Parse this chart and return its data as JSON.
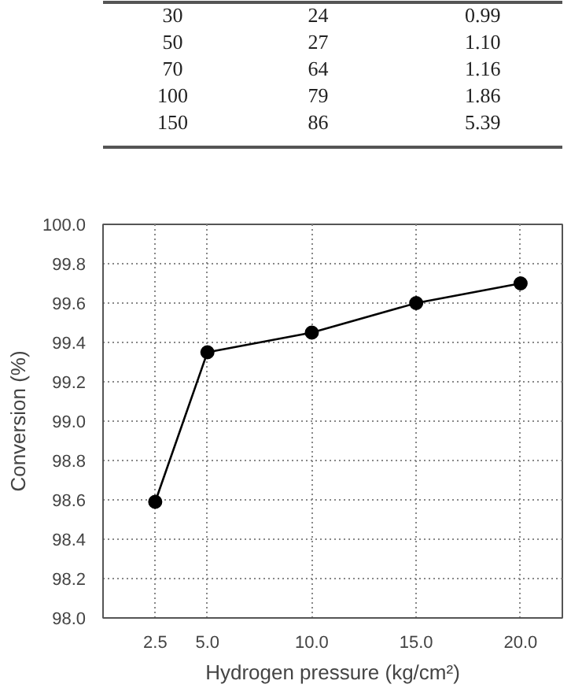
{
  "chart_data": {
    "type": "line",
    "xlabel": "Hydrogen pressure (kg/cm²)",
    "ylabel": "Conversion (%)",
    "annotations": [
      "30",
      "24",
      "0.99",
      "50",
      "27",
      "1.10",
      "70",
      "64",
      "1.16",
      "100",
      "79",
      "1.86",
      "150",
      "86",
      "5.39"
    ],
    "x": [
      2.5,
      5,
      10,
      15,
      20
    ],
    "series": [
      {
        "color": "#000000",
        "values": [
          98.59,
          99.35,
          99.45,
          99.6,
          99.7
        ]
      }
    ],
    "xlim": [
      0,
      22
    ],
    "ylim": [
      98.0,
      100.0
    ],
    "xticks": [
      {
        "value": 2.5,
        "label": "2.5"
      },
      {
        "value": 5,
        "label": "5.0"
      },
      {
        "value": 10,
        "label": "10.0"
      },
      {
        "value": 15,
        "label": "15.0"
      },
      {
        "value": 20,
        "label": "20.0"
      }
    ],
    "yticks": [
      {
        "value": 98.0,
        "label": "98.0"
      },
      {
        "value": 98.2,
        "label": "98.2"
      },
      {
        "value": 98.4,
        "label": "98.4"
      },
      {
        "value": 98.6,
        "label": "98.6"
      },
      {
        "value": 98.8,
        "label": "98.8"
      },
      {
        "value": 99.0,
        "label": "99.0"
      },
      {
        "value": 99.2,
        "label": "99.2"
      },
      {
        "value": 99.4,
        "label": "99.4"
      },
      {
        "value": 99.6,
        "label": "99.6"
      },
      {
        "value": 99.8,
        "label": "99.8"
      },
      {
        "value": 100.0,
        "label": "100.0"
      }
    ],
    "grid": true,
    "marker": "circle",
    "line_style": "solid"
  }
}
